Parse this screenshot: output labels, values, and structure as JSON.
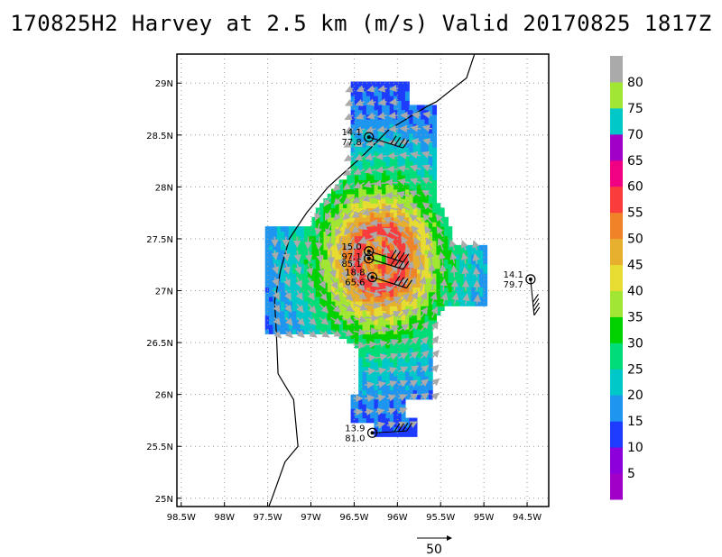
{
  "title": "170825H2 Harvey at 2.5 km (m/s) Valid 20170825 1817Z",
  "axes": {
    "lon_ticks": [
      "98.5W",
      "98W",
      "97.5W",
      "97W",
      "96.5W",
      "96W",
      "95.5W",
      "95W",
      "94.5W"
    ],
    "lat_ticks": [
      "25N",
      "25.5N",
      "26N",
      "26.5N",
      "27N",
      "27.5N",
      "28N",
      "28.5N",
      "29N"
    ],
    "lon_range": [
      -98.55,
      -94.25
    ],
    "lat_range": [
      24.92,
      29.28
    ]
  },
  "colorbar": {
    "labels": [
      "5",
      "10",
      "15",
      "20",
      "25",
      "30",
      "35",
      "40",
      "45",
      "50",
      "55",
      "60",
      "65",
      "70",
      "75",
      "80"
    ],
    "colors": [
      "#a000c8",
      "#8c00dc",
      "#1e3cff",
      "#1e96f0",
      "#00c8c8",
      "#00dc78",
      "#00d200",
      "#a0e632",
      "#e6dc32",
      "#e6af2d",
      "#f08228",
      "#fa3c3c",
      "#f00082",
      "#a000c8",
      "#00c8c8",
      "#a0e632",
      "#aaaaaa"
    ]
  },
  "reference_vector": {
    "label": "50"
  },
  "observations": [
    {
      "line1": "14.1",
      "line2": "77.8",
      "lon": -96.33,
      "lat": 28.48
    },
    {
      "line1": "15.0",
      "line2": "97.1",
      "lon": -96.33,
      "lat": 27.38
    },
    {
      "line1": "",
      "line2": "85.1",
      "lon": -96.33,
      "lat": 27.31
    },
    {
      "line1": "18.8",
      "line2": "65.6",
      "lon": -96.29,
      "lat": 27.13
    },
    {
      "line1": "14.1",
      "line2": "79.7",
      "lon": -94.46,
      "lat": 27.11
    },
    {
      "line1": "13.9",
      "line2": "81.0",
      "lon": -96.29,
      "lat": 25.63
    }
  ],
  "icons": {
    "sonde": "sonde-marker-icon",
    "barb": "wind-barb-icon",
    "vector": "wind-vector-icon"
  }
}
